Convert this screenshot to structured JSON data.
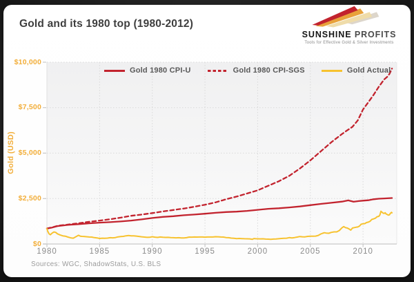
{
  "window": {
    "background": "#000000",
    "card_color": "#ffffff"
  },
  "header": {
    "title": "Gold and its 1980 top (1980-2012)",
    "logo": {
      "name_primary": "SUNSHINE",
      "name_secondary": "PROFITS",
      "tagline": "Tools for Effective Gold & Silver Investments",
      "beam_colors": [
        "#DDD6CB",
        "#EFDCA9",
        "#E8A23B",
        "#C2232E"
      ]
    }
  },
  "footer": {
    "sources": "Sources: WGC, ShadowStats, U.S. BLS"
  },
  "chart_data": {
    "type": "line",
    "title": "Gold and its 1980 top (1980-2012)",
    "xlabel": "",
    "ylabel": "Gold (USD)",
    "xlim": [
      1980,
      2013.2
    ],
    "ylim": [
      0,
      10000
    ],
    "x_ticks": [
      1980,
      1985,
      1990,
      1995,
      2000,
      2005,
      2010
    ],
    "y_ticks": [
      {
        "value": 0,
        "label": "$0"
      },
      {
        "value": 2500,
        "label": "$2,500"
      },
      {
        "value": 5000,
        "label": "$5,000"
      },
      {
        "value": 7500,
        "label": "$7,500"
      },
      {
        "value": 10000,
        "label": "$10,000"
      }
    ],
    "grid": true,
    "grid_color": "#d9d9d9",
    "axis_color": "#c9c9c9",
    "tick_label_color_x": "#8a8a8a",
    "tick_label_color_y": "#F2AE3A",
    "legend_position": "top",
    "series": [
      {
        "name": "Gold 1980 CPI-U",
        "color": "#C2232E",
        "dash": "solid",
        "width": 2.3,
        "points": [
          [
            1980,
            850
          ],
          [
            1980.5,
            905
          ],
          [
            1981,
            985
          ],
          [
            1982,
            1050
          ],
          [
            1983,
            1090
          ],
          [
            1984,
            1135
          ],
          [
            1985,
            1175
          ],
          [
            1986,
            1200
          ],
          [
            1987,
            1240
          ],
          [
            1988,
            1290
          ],
          [
            1989,
            1355
          ],
          [
            1990,
            1430
          ],
          [
            1991,
            1490
          ],
          [
            1992,
            1530
          ],
          [
            1993,
            1580
          ],
          [
            1994,
            1620
          ],
          [
            1995,
            1665
          ],
          [
            1996,
            1715
          ],
          [
            1997,
            1755
          ],
          [
            1998,
            1780
          ],
          [
            1999,
            1820
          ],
          [
            2000,
            1880
          ],
          [
            2001,
            1935
          ],
          [
            2002,
            1965
          ],
          [
            2003,
            2010
          ],
          [
            2004,
            2065
          ],
          [
            2005,
            2135
          ],
          [
            2006,
            2205
          ],
          [
            2007,
            2265
          ],
          [
            2008,
            2330
          ],
          [
            2008.6,
            2400
          ],
          [
            2009.1,
            2325
          ],
          [
            2009.6,
            2360
          ],
          [
            2010,
            2385
          ],
          [
            2010.5,
            2405
          ],
          [
            2011,
            2460
          ],
          [
            2011.5,
            2490
          ],
          [
            2012,
            2505
          ],
          [
            2012.75,
            2530
          ]
        ]
      },
      {
        "name": "Gold 1980 CPI-SGS",
        "color": "#C2232E",
        "dash": "dashed",
        "width": 2.3,
        "points": [
          [
            1980,
            850
          ],
          [
            1980.5,
            915
          ],
          [
            1981,
            1000
          ],
          [
            1982,
            1070
          ],
          [
            1983,
            1140
          ],
          [
            1984,
            1220
          ],
          [
            1985,
            1290
          ],
          [
            1986,
            1360
          ],
          [
            1987,
            1450
          ],
          [
            1988,
            1550
          ],
          [
            1989,
            1620
          ],
          [
            1990,
            1700
          ],
          [
            1991,
            1790
          ],
          [
            1992,
            1870
          ],
          [
            1993,
            1950
          ],
          [
            1994,
            2050
          ],
          [
            1995,
            2160
          ],
          [
            1996,
            2290
          ],
          [
            1997,
            2460
          ],
          [
            1998,
            2610
          ],
          [
            1999,
            2780
          ],
          [
            2000,
            2950
          ],
          [
            2001,
            3200
          ],
          [
            2002,
            3450
          ],
          [
            2003,
            3750
          ],
          [
            2004,
            4150
          ],
          [
            2005,
            4600
          ],
          [
            2006,
            5100
          ],
          [
            2007,
            5600
          ],
          [
            2008,
            6050
          ],
          [
            2008.5,
            6250
          ],
          [
            2009,
            6450
          ],
          [
            2009.5,
            6800
          ],
          [
            2010,
            7400
          ],
          [
            2010.5,
            7800
          ],
          [
            2011,
            8200
          ],
          [
            2011.5,
            8650
          ],
          [
            2012,
            9050
          ],
          [
            2012.3,
            9200
          ],
          [
            2012.5,
            9350
          ],
          [
            2012.75,
            9650
          ]
        ]
      },
      {
        "name": "Gold Actual",
        "color": "#F7C22F",
        "dash": "solid",
        "width": 2,
        "points": [
          [
            1980,
            850
          ],
          [
            1980.08,
            700
          ],
          [
            1980.2,
            560
          ],
          [
            1980.33,
            510
          ],
          [
            1980.5,
            600
          ],
          [
            1980.67,
            660
          ],
          [
            1980.83,
            640
          ],
          [
            1981,
            560
          ],
          [
            1981.25,
            500
          ],
          [
            1981.5,
            450
          ],
          [
            1981.75,
            430
          ],
          [
            1982,
            380
          ],
          [
            1982.25,
            340
          ],
          [
            1982.5,
            320
          ],
          [
            1982.75,
            400
          ],
          [
            1983,
            480
          ],
          [
            1983.17,
            430
          ],
          [
            1983.33,
            420
          ],
          [
            1983.5,
            415
          ],
          [
            1983.75,
            400
          ],
          [
            1984,
            385
          ],
          [
            1984.25,
            380
          ],
          [
            1984.5,
            350
          ],
          [
            1984.75,
            335
          ],
          [
            1985,
            305
          ],
          [
            1985.25,
            320
          ],
          [
            1985.5,
            315
          ],
          [
            1985.75,
            325
          ],
          [
            1986,
            345
          ],
          [
            1986.25,
            340
          ],
          [
            1986.5,
            355
          ],
          [
            1986.75,
            390
          ],
          [
            1987,
            405
          ],
          [
            1987.25,
            420
          ],
          [
            1987.5,
            450
          ],
          [
            1987.75,
            465
          ],
          [
            1988,
            445
          ],
          [
            1988.25,
            450
          ],
          [
            1988.5,
            435
          ],
          [
            1988.75,
            415
          ],
          [
            1989,
            395
          ],
          [
            1989.25,
            380
          ],
          [
            1989.5,
            365
          ],
          [
            1989.75,
            370
          ],
          [
            1990,
            400
          ],
          [
            1990.25,
            375
          ],
          [
            1990.5,
            360
          ],
          [
            1990.75,
            385
          ],
          [
            1991,
            370
          ],
          [
            1991.25,
            360
          ],
          [
            1991.5,
            365
          ],
          [
            1991.75,
            355
          ],
          [
            1992,
            345
          ],
          [
            1992.25,
            340
          ],
          [
            1992.5,
            345
          ],
          [
            1992.75,
            335
          ],
          [
            1993,
            330
          ],
          [
            1993.25,
            345
          ],
          [
            1993.5,
            380
          ],
          [
            1993.75,
            375
          ],
          [
            1994,
            385
          ],
          [
            1994.25,
            380
          ],
          [
            1994.5,
            385
          ],
          [
            1994.75,
            385
          ],
          [
            1995,
            378
          ],
          [
            1995.25,
            385
          ],
          [
            1995.5,
            385
          ],
          [
            1995.75,
            385
          ],
          [
            1996,
            400
          ],
          [
            1996.25,
            395
          ],
          [
            1996.5,
            385
          ],
          [
            1996.75,
            380
          ],
          [
            1997,
            355
          ],
          [
            1997.25,
            345
          ],
          [
            1997.5,
            325
          ],
          [
            1997.75,
            310
          ],
          [
            1998,
            295
          ],
          [
            1998.25,
            305
          ],
          [
            1998.5,
            295
          ],
          [
            1998.75,
            290
          ],
          [
            1999,
            285
          ],
          [
            1999.25,
            280
          ],
          [
            1999.5,
            260
          ],
          [
            1999.65,
            300
          ],
          [
            1999.8,
            290
          ],
          [
            2000,
            285
          ],
          [
            2000.25,
            280
          ],
          [
            2000.5,
            285
          ],
          [
            2000.75,
            270
          ],
          [
            2001,
            265
          ],
          [
            2001.25,
            260
          ],
          [
            2001.5,
            270
          ],
          [
            2001.75,
            275
          ],
          [
            2002,
            290
          ],
          [
            2002.25,
            305
          ],
          [
            2002.5,
            315
          ],
          [
            2002.75,
            320
          ],
          [
            2003,
            350
          ],
          [
            2003.25,
            330
          ],
          [
            2003.5,
            355
          ],
          [
            2003.75,
            380
          ],
          [
            2004,
            410
          ],
          [
            2004.25,
            395
          ],
          [
            2004.5,
            390
          ],
          [
            2004.75,
            420
          ],
          [
            2005,
            425
          ],
          [
            2005.25,
            430
          ],
          [
            2005.5,
            435
          ],
          [
            2005.75,
            470
          ],
          [
            2006,
            550
          ],
          [
            2006.17,
            590
          ],
          [
            2006.33,
            620
          ],
          [
            2006.5,
            600
          ],
          [
            2006.75,
            590
          ],
          [
            2007,
            640
          ],
          [
            2007.25,
            665
          ],
          [
            2007.5,
            665
          ],
          [
            2007.75,
            740
          ],
          [
            2008,
            890
          ],
          [
            2008.17,
            960
          ],
          [
            2008.33,
            900
          ],
          [
            2008.5,
            880
          ],
          [
            2008.67,
            830
          ],
          [
            2008.83,
            760
          ],
          [
            2009,
            880
          ],
          [
            2009.17,
            900
          ],
          [
            2009.33,
            920
          ],
          [
            2009.5,
            935
          ],
          [
            2009.67,
            990
          ],
          [
            2009.83,
            1090
          ],
          [
            2010,
            1110
          ],
          [
            2010.17,
            1120
          ],
          [
            2010.33,
            1180
          ],
          [
            2010.5,
            1200
          ],
          [
            2010.67,
            1250
          ],
          [
            2010.83,
            1350
          ],
          [
            2011,
            1380
          ],
          [
            2011.17,
            1420
          ],
          [
            2011.33,
            1500
          ],
          [
            2011.5,
            1520
          ],
          [
            2011.6,
            1600
          ],
          [
            2011.7,
            1800
          ],
          [
            2011.8,
            1750
          ],
          [
            2011.9,
            1700
          ],
          [
            2012,
            1680
          ],
          [
            2012.1,
            1720
          ],
          [
            2012.2,
            1650
          ],
          [
            2012.3,
            1620
          ],
          [
            2012.4,
            1590
          ],
          [
            2012.5,
            1600
          ],
          [
            2012.6,
            1690
          ],
          [
            2012.7,
            1740
          ],
          [
            2012.75,
            1715
          ]
        ]
      }
    ]
  }
}
